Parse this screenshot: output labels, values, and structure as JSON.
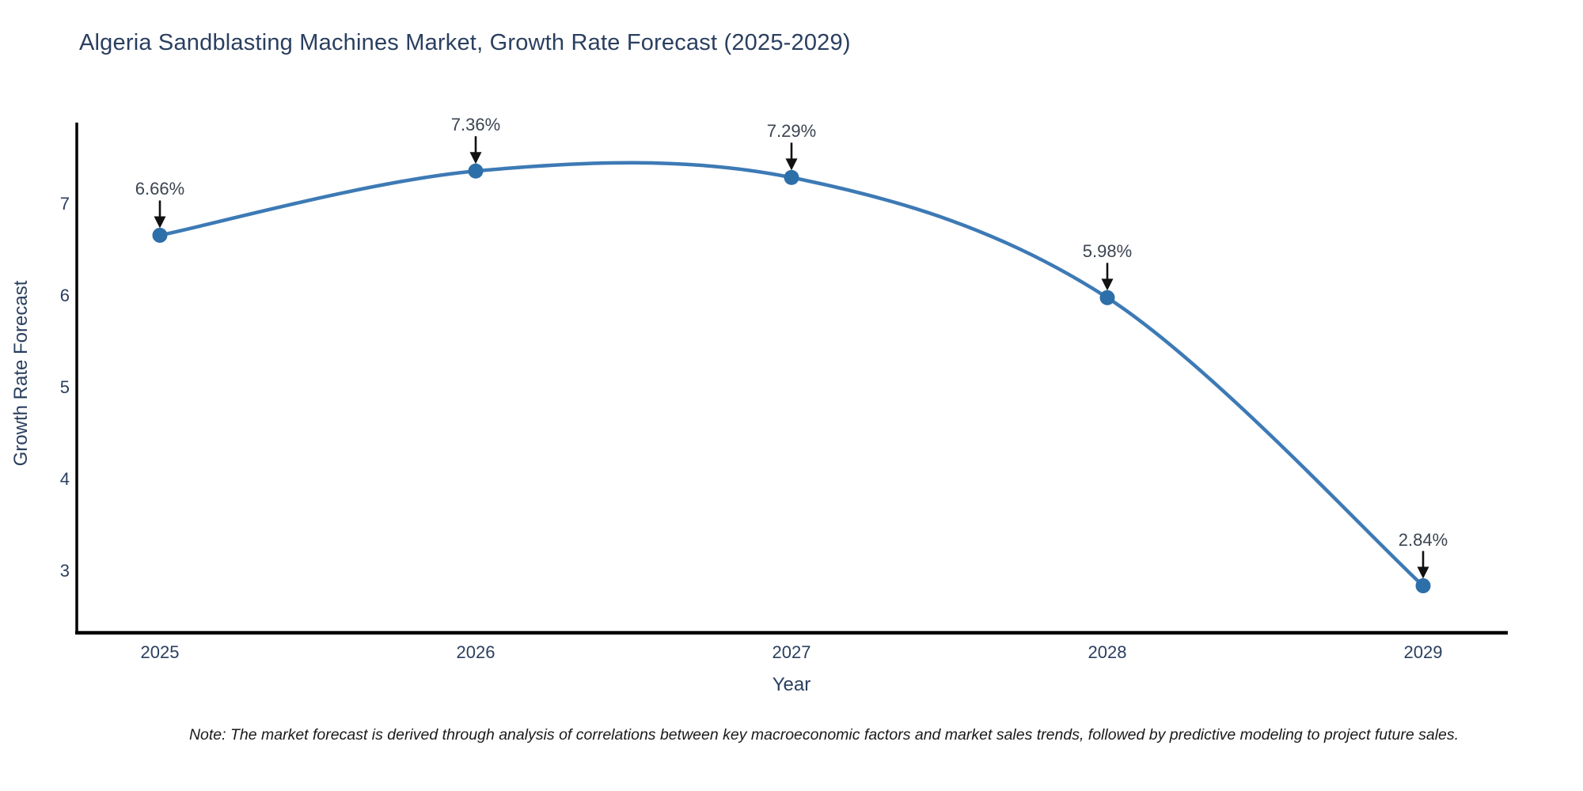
{
  "header": {
    "title": "Algeria Sandblasting Machines Market, Growth Rate Forecast (2025-2029)"
  },
  "footer": {
    "note": "Note: The market forecast is derived through analysis of correlations between key macroeconomic factors and market sales trends, followed by predictive modeling to project future sales."
  },
  "chart_data": {
    "type": "line",
    "title": "Algeria Sandblasting Machines Market, Growth Rate Forecast (2025-2029)",
    "xlabel": "Year",
    "ylabel": "Growth Rate Forecast",
    "categories": [
      "2025",
      "2026",
      "2027",
      "2028",
      "2029"
    ],
    "series": [
      {
        "name": "Growth Rate Forecast",
        "values": [
          6.66,
          7.36,
          7.29,
          5.98,
          2.84
        ]
      }
    ],
    "point_labels": [
      "6.66%",
      "7.36%",
      "7.29%",
      "5.98%",
      "2.84%"
    ],
    "yticks": [
      7,
      6,
      5,
      4,
      3
    ],
    "ylim": [
      2.33,
      7.9
    ],
    "line_shape": "spline",
    "grid": false,
    "legend_position": "none",
    "colors": {
      "line": "#3d7ab5",
      "marker": "#2d6fa9",
      "axis": "#000000",
      "arrow": "#111111",
      "title_text": "#2a3f5f",
      "tick_text": "#2a3f5f",
      "annotation_text": "#3b4450",
      "background": "#ffffff"
    }
  }
}
